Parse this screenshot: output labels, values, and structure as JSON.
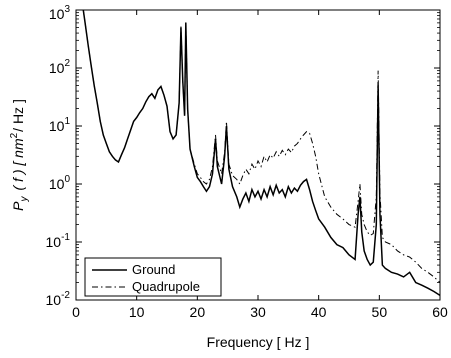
{
  "chart_data": {
    "type": "line",
    "xlabel": "Frequency [ Hz ]",
    "ylabel": {
      "p": "P",
      "sub": "y",
      "mid": "( f ) [ nm",
      "sup": "2",
      "end": "/ Hz ]"
    },
    "xlim": [
      0,
      60
    ],
    "ylim": [
      0.01,
      1000
    ],
    "yscale": "log",
    "grid": false,
    "legend_position": "lower-left",
    "x_ticks": [
      "0",
      "10",
      "20",
      "30",
      "40",
      "50",
      "60"
    ],
    "y_ticks": [
      {
        "base": "10",
        "exp": "-2"
      },
      {
        "base": "10",
        "exp": "-1"
      },
      {
        "base": "10",
        "exp": "0"
      },
      {
        "base": "10",
        "exp": "1"
      },
      {
        "base": "10",
        "exp": "2"
      },
      {
        "base": "10",
        "exp": "3"
      }
    ],
    "series": [
      {
        "name": "Ground",
        "style": "solid",
        "points": [
          [
            1.2,
            1000
          ],
          [
            1.5,
            600
          ],
          [
            2,
            250
          ],
          [
            2.5,
            110
          ],
          [
            3,
            50
          ],
          [
            3.5,
            25
          ],
          [
            4,
            12
          ],
          [
            4.5,
            7
          ],
          [
            5,
            5
          ],
          [
            5.5,
            3.6
          ],
          [
            6,
            3
          ],
          [
            6.5,
            2.6
          ],
          [
            7,
            2.4
          ],
          [
            7.5,
            3.2
          ],
          [
            8,
            4.2
          ],
          [
            8.5,
            6
          ],
          [
            9,
            8.5
          ],
          [
            9.5,
            12
          ],
          [
            10,
            14
          ],
          [
            10.5,
            17
          ],
          [
            11,
            20
          ],
          [
            11.5,
            26
          ],
          [
            12,
            32
          ],
          [
            12.5,
            36
          ],
          [
            13,
            30
          ],
          [
            13.5,
            42
          ],
          [
            14,
            48
          ],
          [
            14.5,
            34
          ],
          [
            15,
            22
          ],
          [
            15.5,
            8
          ],
          [
            16,
            6
          ],
          [
            16.5,
            7
          ],
          [
            17,
            25
          ],
          [
            17.3,
            500
          ],
          [
            17.6,
            60
          ],
          [
            17.9,
            15
          ],
          [
            18.1,
            600
          ],
          [
            18.4,
            20
          ],
          [
            18.8,
            4
          ],
          [
            19.5,
            2
          ],
          [
            20,
            1.3
          ],
          [
            20.5,
            1.1
          ],
          [
            21,
            0.9
          ],
          [
            21.5,
            0.75
          ],
          [
            22,
            0.9
          ],
          [
            22.5,
            1.5
          ],
          [
            23,
            6
          ],
          [
            23.3,
            2
          ],
          [
            24,
            1
          ],
          [
            24.5,
            3
          ],
          [
            24.8,
            10
          ],
          [
            25.2,
            1.8
          ],
          [
            25.8,
            0.9
          ],
          [
            26.5,
            0.6
          ],
          [
            27,
            0.4
          ],
          [
            27.5,
            0.55
          ],
          [
            28,
            0.7
          ],
          [
            28.5,
            0.5
          ],
          [
            29,
            0.8
          ],
          [
            29.5,
            0.6
          ],
          [
            30,
            0.75
          ],
          [
            30.5,
            0.55
          ],
          [
            31,
            0.8
          ],
          [
            31.5,
            0.6
          ],
          [
            32,
            0.9
          ],
          [
            32.5,
            0.65
          ],
          [
            33,
            0.95
          ],
          [
            33.5,
            0.7
          ],
          [
            34,
            0.8
          ],
          [
            34.5,
            0.6
          ],
          [
            35,
            0.9
          ],
          [
            35.5,
            0.7
          ],
          [
            36,
            0.85
          ],
          [
            36.5,
            0.75
          ],
          [
            37,
            0.95
          ],
          [
            37.5,
            1.1
          ],
          [
            38,
            1.2
          ],
          [
            38.5,
            0.8
          ],
          [
            39,
            0.5
          ],
          [
            39.5,
            0.35
          ],
          [
            40,
            0.25
          ],
          [
            41,
            0.18
          ],
          [
            42,
            0.12
          ],
          [
            43,
            0.09
          ],
          [
            44,
            0.08
          ],
          [
            45,
            0.06
          ],
          [
            46,
            0.05
          ],
          [
            46.5,
            0.3
          ],
          [
            46.8,
            0.6
          ],
          [
            47.1,
            0.15
          ],
          [
            47.5,
            0.07
          ],
          [
            48,
            0.05
          ],
          [
            48.5,
            0.04
          ],
          [
            49,
            0.045
          ],
          [
            49.5,
            0.2
          ],
          [
            49.8,
            50
          ],
          [
            50.1,
            0.3
          ],
          [
            50.5,
            0.04
          ],
          [
            51,
            0.035
          ],
          [
            52,
            0.03
          ],
          [
            53,
            0.028
          ],
          [
            54,
            0.025
          ],
          [
            55,
            0.03
          ],
          [
            56,
            0.02
          ],
          [
            57,
            0.018
          ],
          [
            58,
            0.016
          ],
          [
            59,
            0.014
          ],
          [
            60,
            0.012
          ]
        ]
      },
      {
        "name": "Quadrupole",
        "style": "dashdot",
        "points": [
          [
            1.2,
            1000
          ],
          [
            1.5,
            600
          ],
          [
            2,
            250
          ],
          [
            2.5,
            110
          ],
          [
            3,
            50
          ],
          [
            3.5,
            25
          ],
          [
            4,
            12
          ],
          [
            4.5,
            7
          ],
          [
            5,
            5
          ],
          [
            5.5,
            3.6
          ],
          [
            6,
            3
          ],
          [
            6.5,
            2.6
          ],
          [
            7,
            2.4
          ],
          [
            7.5,
            3.2
          ],
          [
            8,
            4.2
          ],
          [
            8.5,
            6
          ],
          [
            9,
            8.5
          ],
          [
            9.5,
            12
          ],
          [
            10,
            14
          ],
          [
            10.5,
            17
          ],
          [
            11,
            20
          ],
          [
            11.5,
            26
          ],
          [
            12,
            32
          ],
          [
            12.5,
            36
          ],
          [
            13,
            30
          ],
          [
            13.5,
            42
          ],
          [
            14,
            48
          ],
          [
            14.5,
            34
          ],
          [
            15,
            22
          ],
          [
            15.5,
            8
          ],
          [
            16,
            6
          ],
          [
            16.5,
            7
          ],
          [
            17,
            25
          ],
          [
            17.3,
            520
          ],
          [
            17.6,
            60
          ],
          [
            17.9,
            15
          ],
          [
            18.1,
            650
          ],
          [
            18.4,
            20
          ],
          [
            18.8,
            4
          ],
          [
            19.5,
            2.2
          ],
          [
            20,
            1.5
          ],
          [
            20.5,
            1.3
          ],
          [
            21,
            1.1
          ],
          [
            21.5,
            1.0
          ],
          [
            22,
            1.2
          ],
          [
            22.5,
            2
          ],
          [
            23,
            7
          ],
          [
            23.3,
            2.5
          ],
          [
            24,
            1.5
          ],
          [
            24.5,
            3.5
          ],
          [
            24.8,
            12
          ],
          [
            25.2,
            2.2
          ],
          [
            25.8,
            1.4
          ],
          [
            26.5,
            1.2
          ],
          [
            27,
            1.0
          ],
          [
            27.5,
            1.4
          ],
          [
            28,
            1.8
          ],
          [
            28.5,
            1.5
          ],
          [
            29,
            2.2
          ],
          [
            29.5,
            1.8
          ],
          [
            30,
            2.5
          ],
          [
            30.5,
            2
          ],
          [
            31,
            3
          ],
          [
            31.5,
            2.4
          ],
          [
            32,
            3.2
          ],
          [
            32.5,
            2.8
          ],
          [
            33,
            3.6
          ],
          [
            33.5,
            3
          ],
          [
            34,
            3.8
          ],
          [
            34.5,
            3.2
          ],
          [
            35,
            4
          ],
          [
            35.5,
            3.5
          ],
          [
            36,
            4.5
          ],
          [
            36.5,
            5
          ],
          [
            37,
            6
          ],
          [
            37.5,
            7
          ],
          [
            38,
            8
          ],
          [
            38.5,
            7.5
          ],
          [
            39,
            5
          ],
          [
            39.5,
            3
          ],
          [
            40,
            1.5
          ],
          [
            41,
            0.6
          ],
          [
            42,
            0.4
          ],
          [
            43,
            0.3
          ],
          [
            44,
            0.25
          ],
          [
            45,
            0.2
          ],
          [
            46,
            0.18
          ],
          [
            46.5,
            0.5
          ],
          [
            46.8,
            1.0
          ],
          [
            47.1,
            0.3
          ],
          [
            47.5,
            0.2
          ],
          [
            48,
            0.15
          ],
          [
            48.5,
            0.13
          ],
          [
            49,
            0.14
          ],
          [
            49.5,
            0.6
          ],
          [
            49.8,
            90
          ],
          [
            50.1,
            0.7
          ],
          [
            50.5,
            0.12
          ],
          [
            51,
            0.1
          ],
          [
            52,
            0.09
          ],
          [
            53,
            0.07
          ],
          [
            54,
            0.06
          ],
          [
            55,
            0.055
          ],
          [
            56,
            0.045
          ],
          [
            57,
            0.035
          ],
          [
            58,
            0.03
          ],
          [
            59,
            0.025
          ],
          [
            60,
            0.02
          ]
        ]
      }
    ]
  }
}
